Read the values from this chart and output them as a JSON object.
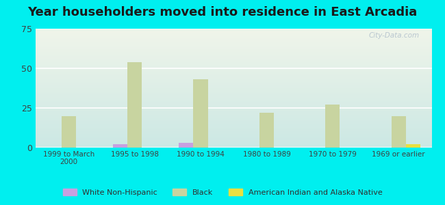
{
  "title": "Year householders moved into residence in East Arcadia",
  "categories": [
    "1999 to March\n2000",
    "1995 to 1998",
    "1990 to 1994",
    "1980 to 1989",
    "1970 to 1979",
    "1969 or earlier"
  ],
  "series": {
    "White Non-Hispanic": {
      "values": [
        0,
        2,
        3,
        0,
        0,
        0
      ],
      "color": "#c8a0e0"
    },
    "Black": {
      "values": [
        20,
        54,
        43,
        22,
        27,
        20
      ],
      "color": "#c8d4a0"
    },
    "American Indian and Alaska Native": {
      "values": [
        0,
        0,
        0,
        0,
        0,
        2
      ],
      "color": "#e8e040"
    }
  },
  "ylim": [
    0,
    75
  ],
  "yticks": [
    0,
    25,
    50,
    75
  ],
  "background_color": "#00EFEF",
  "plot_bg_top": "#f0f5ea",
  "plot_bg_bottom": "#cce8e4",
  "grid_color": "#ffffff",
  "title_fontsize": 13,
  "bar_width": 0.22,
  "watermark": "City-Data.com",
  "legend_items": [
    "White Non-Hispanic",
    "Black",
    "American Indian and Alaska Native"
  ],
  "legend_colors": [
    "#c8a0e0",
    "#c8d4a0",
    "#e8e040"
  ]
}
